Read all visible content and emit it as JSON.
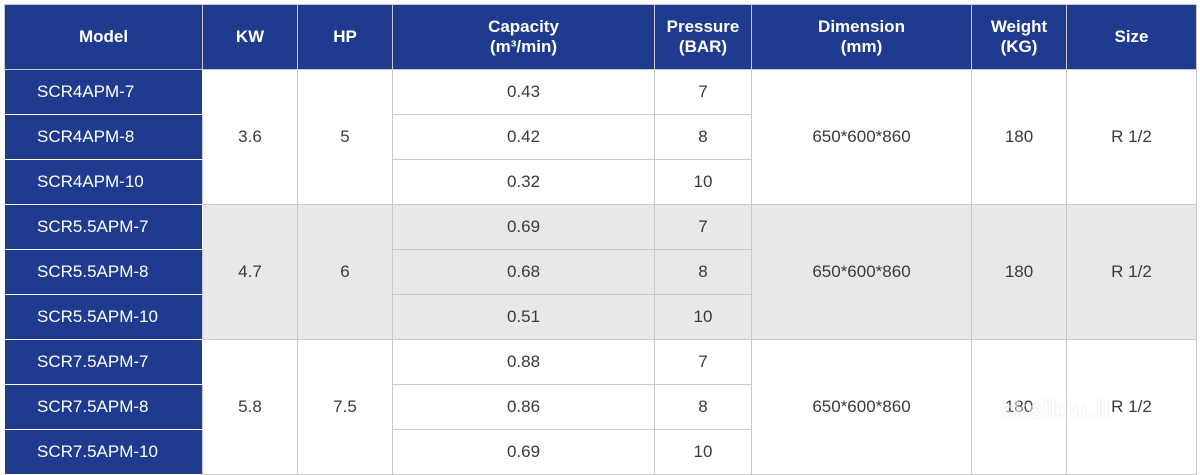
{
  "headers": {
    "model": "Model",
    "kw": "KW",
    "hp": "HP",
    "capacity_l1": "Capacity",
    "capacity_l2": "(m³/min)",
    "pressure_l1": "Pressure",
    "pressure_l2": "(BAR)",
    "dimension_l1": "Dimension",
    "dimension_l2": "(mm)",
    "weight_l1": "Weight",
    "weight_l2": "(KG)",
    "size": "Size"
  },
  "groups": [
    {
      "kw": "3.6",
      "hp": "5",
      "dimension": "650*600*860",
      "weight": "180",
      "size": "R 1/2",
      "rows": [
        {
          "model": "SCR4APM-7",
          "capacity": "0.43",
          "pressure": "7"
        },
        {
          "model": "SCR4APM-8",
          "capacity": "0.42",
          "pressure": "8"
        },
        {
          "model": "SCR4APM-10",
          "capacity": "0.32",
          "pressure": "10"
        }
      ]
    },
    {
      "kw": "4.7",
      "hp": "6",
      "dimension": "650*600*860",
      "weight": "180",
      "size": "R 1/2",
      "rows": [
        {
          "model": "SCR5.5APM-7",
          "capacity": "0.69",
          "pressure": "7"
        },
        {
          "model": "SCR5.5APM-8",
          "capacity": "0.68",
          "pressure": "8"
        },
        {
          "model": "SCR5.5APM-10",
          "capacity": "0.51",
          "pressure": "10"
        }
      ]
    },
    {
      "kw": "5.8",
      "hp": "7.5",
      "dimension": "650*600*860",
      "weight": "180",
      "size": "R 1/2",
      "rows": [
        {
          "model": "SCR7.5APM-7",
          "capacity": "0.88",
          "pressure": "7"
        },
        {
          "model": "SCR7.5APM-8",
          "capacity": "0.86",
          "pressure": "8"
        },
        {
          "model": "SCR7.5APM-10",
          "capacity": "0.69",
          "pressure": "10"
        }
      ]
    }
  ],
  "watermark": "skelbiu.lt"
}
